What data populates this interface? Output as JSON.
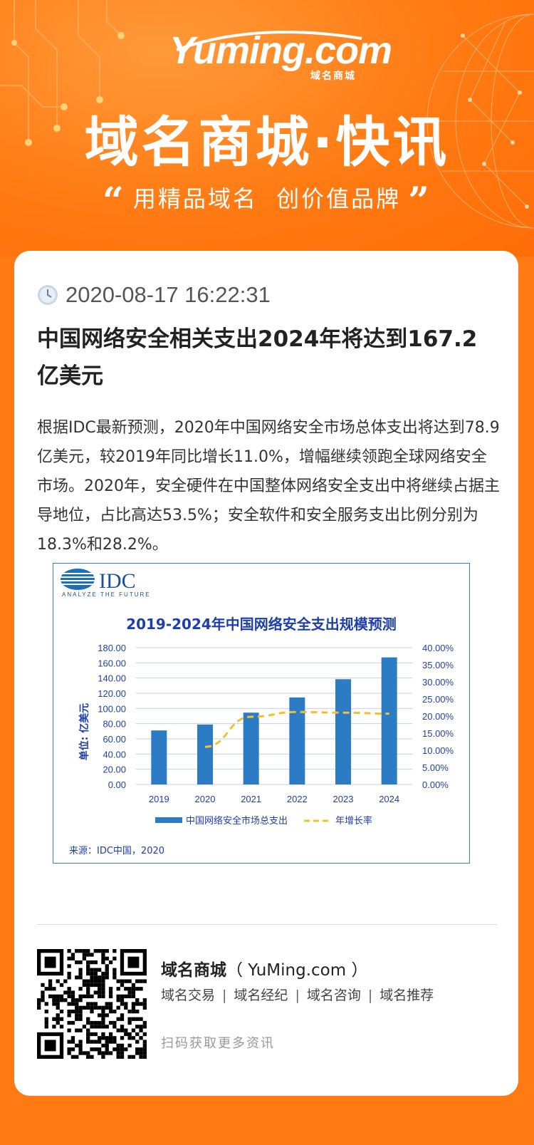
{
  "header": {
    "logo_text": "Yuming.com",
    "logo_sub": "域名商城",
    "banner_title": "域名商城·快讯",
    "slogan_open": "“",
    "slogan_text": "用精品域名  创价值品牌",
    "slogan_close": "”"
  },
  "article": {
    "timestamp": "2020-08-17 16:22:31",
    "title": "中国网络安全相关支出2024年将达到167.2亿美元",
    "body": "根据IDC最新预测，2020年中国网络安全市场总体支出将达到78.9亿美元，较2019年同比增长11.0%，增幅继续领跑全球网络安全市场。2020年，安全硬件在中国整体网络安全支出中将继续占据主导地位，占比高达53.5%；安全软件和安全服务支出比例分别为18.3%和28.2%。"
  },
  "chart_data": {
    "type": "bar",
    "logo": "IDC",
    "logo_tagline": "ANALYZE THE FUTURE",
    "title": "2019-2024年中国网络安全支出规模预测",
    "categories": [
      "2019",
      "2020",
      "2021",
      "2022",
      "2023",
      "2024"
    ],
    "series": [
      {
        "name": "中国网络安全市场总支出",
        "kind": "bar",
        "axis": "left",
        "color": "#2b7cc4",
        "values": [
          71.1,
          78.9,
          94.5,
          114.5,
          138.5,
          167.2
        ]
      },
      {
        "name": "年增长率",
        "kind": "line-dashed",
        "axis": "right",
        "color": "#f2c12e",
        "values": [
          null,
          11.0,
          19.8,
          21.2,
          21.0,
          20.7
        ]
      }
    ],
    "ylabel": "单位: 亿美元",
    "ylim": [
      0,
      180
    ],
    "y_ticks": [
      "0.00",
      "20.00",
      "40.00",
      "60.00",
      "80.00",
      "100.00",
      "120.00",
      "140.00",
      "160.00",
      "180.00"
    ],
    "y2lim": [
      0,
      40
    ],
    "y2_ticks": [
      "0.00%",
      "5.00%",
      "10.00%",
      "15.00%",
      "20.00%",
      "25.00%",
      "30.00%",
      "35.00%",
      "40.00%"
    ],
    "grid": true,
    "legend": "bottom",
    "source": "来源：IDC中国，2020"
  },
  "footer": {
    "brand_name": "域名商城",
    "brand_domain": "（ YuMing.com ）",
    "links": [
      "域名交易",
      "域名经纪",
      "域名咨询",
      "域名推荐"
    ],
    "scan_text": "扫码获取更多资讯"
  },
  "colors": {
    "accent": "#ff7a12",
    "chart_blue": "#2b7cc4",
    "chart_yellow": "#f2c12e"
  }
}
